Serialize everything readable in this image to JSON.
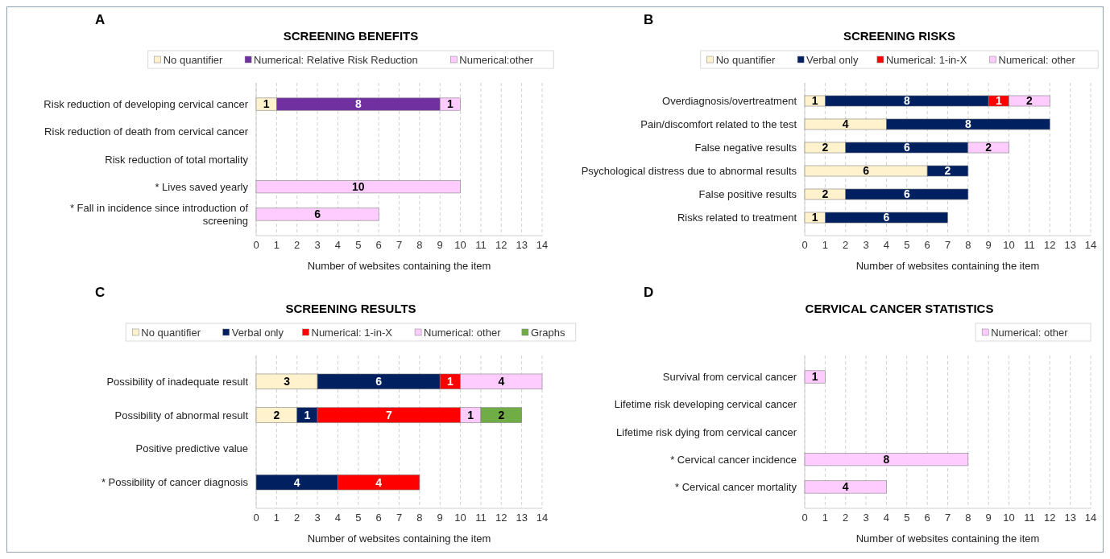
{
  "chart_data": [
    {
      "type": "bar",
      "orientation": "horizontal",
      "stacked": true,
      "title": "SCREENING BENEFITS",
      "annotations": [
        "A"
      ],
      "xlabel": "Number of websites containing the item",
      "categories": [
        "Risk reduction of developing cervical cancer",
        "Risk reduction of death from cervical cancer",
        "Risk reduction of total mortality",
        "* Lives saved yearly",
        "* Fall in incidence since introduction of screening"
      ],
      "series": [
        {
          "name": "No quantifier",
          "color": "#fff2cc",
          "values": [
            1,
            null,
            null,
            null,
            null
          ]
        },
        {
          "name": "Numerical: Relative Risk Reduction",
          "color": "#7030a0",
          "values": [
            8,
            null,
            null,
            null,
            null
          ]
        },
        {
          "name": "Numerical:other",
          "color": "#ffccff",
          "values": [
            1,
            null,
            null,
            10,
            6
          ]
        }
      ],
      "xlim": [
        0,
        14
      ],
      "xticks": [
        0,
        1,
        2,
        3,
        4,
        5,
        6,
        7,
        8,
        9,
        10,
        11,
        12,
        13,
        14
      ],
      "grid": "x",
      "legend": "top",
      "data_labels": true
    },
    {
      "type": "bar",
      "orientation": "horizontal",
      "stacked": true,
      "title": "SCREENING RISKS",
      "annotations": [
        "B"
      ],
      "xlabel": "Number of websites containing the item",
      "categories": [
        "Overdiagnosis/overtreatment",
        "Pain/discomfort related to the test",
        "False negative results",
        "Psychological distress due to abnormal results",
        "False positive results",
        "Risks related to treatment"
      ],
      "series": [
        {
          "name": "No quantifier",
          "color": "#fff2cc",
          "values": [
            1,
            4,
            2,
            6,
            2,
            1
          ]
        },
        {
          "name": "Verbal only",
          "color": "#002060",
          "values": [
            8,
            8,
            6,
            2,
            6,
            6
          ]
        },
        {
          "name": "Numerical: 1-in-X",
          "color": "#ff0000",
          "values": [
            1,
            null,
            null,
            null,
            null,
            null
          ]
        },
        {
          "name": "Numerical: other",
          "color": "#ffccff",
          "values": [
            2,
            null,
            2,
            null,
            null,
            null
          ]
        }
      ],
      "xlim": [
        0,
        14
      ],
      "xticks": [
        0,
        1,
        2,
        3,
        4,
        5,
        6,
        7,
        8,
        9,
        10,
        11,
        12,
        13,
        14
      ],
      "grid": "x",
      "legend": "top",
      "data_labels": true
    },
    {
      "type": "bar",
      "orientation": "horizontal",
      "stacked": true,
      "title": "SCREENING RESULTS",
      "annotations": [
        "C"
      ],
      "xlabel": "Number of websites containing the item",
      "categories": [
        "Possibility of inadequate result",
        "Possibility of abnormal result",
        "Positive predictive value",
        "* Possibility of cancer diagnosis"
      ],
      "series": [
        {
          "name": "No quantifier",
          "color": "#fff2cc",
          "values": [
            3,
            2,
            null,
            null
          ]
        },
        {
          "name": "Verbal only",
          "color": "#002060",
          "values": [
            6,
            1,
            null,
            4
          ]
        },
        {
          "name": "Numerical: 1-in-X",
          "color": "#ff0000",
          "values": [
            1,
            7,
            null,
            4
          ]
        },
        {
          "name": "Numerical: other",
          "color": "#ffccff",
          "values": [
            4,
            1,
            null,
            null
          ]
        },
        {
          "name": "Graphs",
          "color": "#70ad47",
          "values": [
            null,
            2,
            null,
            null
          ]
        }
      ],
      "xlim": [
        0,
        14
      ],
      "xticks": [
        0,
        1,
        2,
        3,
        4,
        5,
        6,
        7,
        8,
        9,
        10,
        11,
        12,
        13,
        14
      ],
      "grid": "x",
      "legend": "top",
      "data_labels": true
    },
    {
      "type": "bar",
      "orientation": "horizontal",
      "stacked": true,
      "title": "CERVICAL CANCER STATISTICS",
      "annotations": [
        "D"
      ],
      "xlabel": "Number of websites containing the item",
      "categories": [
        "Survival from cervical cancer",
        "Lifetime risk developing cervical cancer",
        "Lifetime risk dying from cervical cancer",
        "* Cervical cancer incidence",
        "* Cervical cancer mortality"
      ],
      "series": [
        {
          "name": "Numerical: other",
          "color": "#ffccff",
          "values": [
            1,
            null,
            null,
            8,
            4
          ]
        }
      ],
      "xlim": [
        0,
        14
      ],
      "xticks": [
        0,
        1,
        2,
        3,
        4,
        5,
        6,
        7,
        8,
        9,
        10,
        11,
        12,
        13,
        14
      ],
      "grid": "x",
      "legend": "top right",
      "data_labels": true
    }
  ]
}
